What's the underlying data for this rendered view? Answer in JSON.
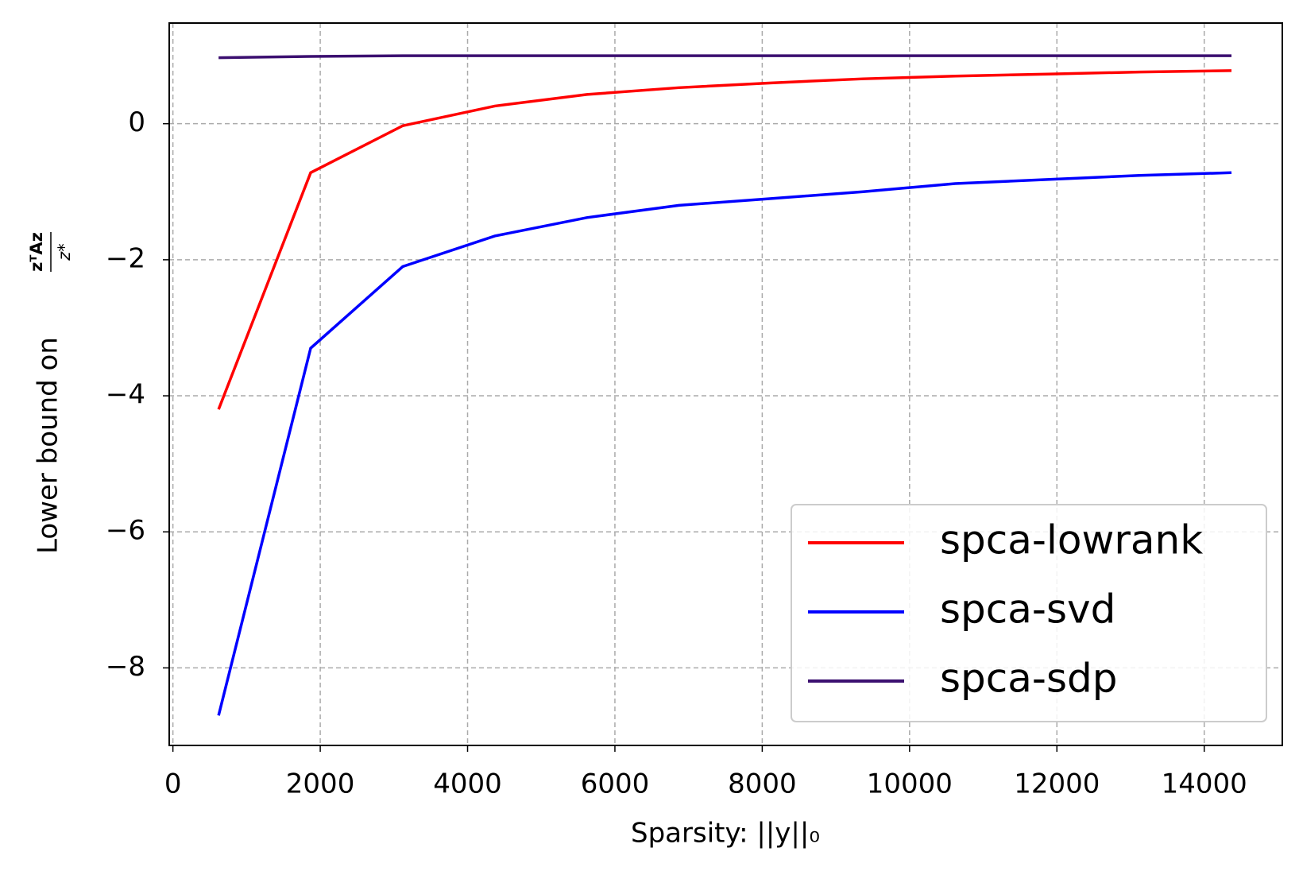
{
  "chart_data": {
    "type": "line",
    "xlabel": "Sparsity: ||y||₀",
    "ylabel": "Lower bound on",
    "ylabel_fraction": {
      "numerator": "zᵀAz",
      "denominator": "z*"
    },
    "x": [
      620,
      1870,
      3120,
      4370,
      5620,
      6870,
      8120,
      9370,
      10620,
      11870,
      13120,
      14370
    ],
    "series": [
      {
        "name": "spca-lowrank",
        "color": "#ff0000",
        "values": [
          -4.2,
          -0.72,
          -0.03,
          0.26,
          0.43,
          0.53,
          0.6,
          0.66,
          0.7,
          0.73,
          0.76,
          0.78
        ]
      },
      {
        "name": "spca-svd",
        "color": "#0000ff",
        "values": [
          -8.7,
          -3.3,
          -2.1,
          -1.65,
          -1.38,
          -1.2,
          -1.1,
          -1.0,
          -0.88,
          -0.82,
          -0.76,
          -0.72
        ]
      },
      {
        "name": "spca-sdp",
        "color": "#3b0f70",
        "values": [
          0.97,
          0.99,
          1.0,
          1.0,
          1.0,
          1.0,
          1.0,
          1.0,
          1.0,
          1.0,
          1.0,
          1.0
        ]
      }
    ],
    "xlim": [
      -50,
      15060
    ],
    "ylim": [
      -9.14,
      1.48
    ],
    "xticks": [
      0,
      2000,
      4000,
      6000,
      8000,
      10000,
      12000,
      14000
    ],
    "yticks": [
      {
        "value": -8,
        "label": "−8"
      },
      {
        "value": -6,
        "label": "−6"
      },
      {
        "value": -4,
        "label": "−4"
      },
      {
        "value": -2,
        "label": "−2"
      },
      0
    ],
    "grid": true,
    "legend": "lower right"
  }
}
